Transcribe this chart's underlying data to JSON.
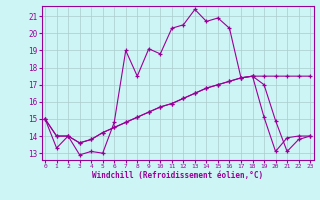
{
  "xlabel": "Windchill (Refroidissement éolien,°C)",
  "background_color": "#cef5f5",
  "grid_color": "#aacccc",
  "line_color": "#990099",
  "x_ticks": [
    0,
    1,
    2,
    3,
    4,
    5,
    6,
    7,
    8,
    9,
    10,
    11,
    12,
    13,
    14,
    15,
    16,
    17,
    18,
    19,
    20,
    21,
    22,
    23
  ],
  "y_ticks": [
    13,
    14,
    15,
    16,
    17,
    18,
    19,
    20,
    21
  ],
  "ylim": [
    12.6,
    21.6
  ],
  "xlim": [
    -0.3,
    23.3
  ],
  "line1_x": [
    0,
    1,
    2,
    3,
    4,
    5,
    6,
    7,
    8,
    9,
    10,
    11,
    12,
    13,
    14,
    15,
    16,
    17,
    18,
    19,
    20,
    21,
    22,
    23
  ],
  "line1_y": [
    15.0,
    13.3,
    14.0,
    12.9,
    13.1,
    13.0,
    14.8,
    19.0,
    17.5,
    19.1,
    18.8,
    20.3,
    20.5,
    21.4,
    20.7,
    20.9,
    20.3,
    17.4,
    17.5,
    15.1,
    13.1,
    13.9,
    14.0,
    14.0
  ],
  "line2_x": [
    0,
    1,
    2,
    3,
    4,
    5,
    6,
    7,
    8,
    9,
    10,
    11,
    12,
    13,
    14,
    15,
    16,
    17,
    18,
    19,
    20,
    21,
    22,
    23
  ],
  "line2_y": [
    15.0,
    14.0,
    14.0,
    13.6,
    13.8,
    14.2,
    14.5,
    14.8,
    15.1,
    15.4,
    15.7,
    15.9,
    16.2,
    16.5,
    16.8,
    17.0,
    17.2,
    17.4,
    17.5,
    17.0,
    14.9,
    13.1,
    13.8,
    14.0
  ],
  "line3_x": [
    0,
    1,
    2,
    3,
    4,
    5,
    6,
    7,
    8,
    9,
    10,
    11,
    12,
    13,
    14,
    15,
    16,
    17,
    18,
    19,
    20,
    21,
    22,
    23
  ],
  "line3_y": [
    15.0,
    14.0,
    14.0,
    13.6,
    13.8,
    14.2,
    14.5,
    14.8,
    15.1,
    15.4,
    15.7,
    15.9,
    16.2,
    16.5,
    16.8,
    17.0,
    17.2,
    17.4,
    17.5,
    17.5,
    17.5,
    17.5,
    17.5,
    17.5
  ]
}
